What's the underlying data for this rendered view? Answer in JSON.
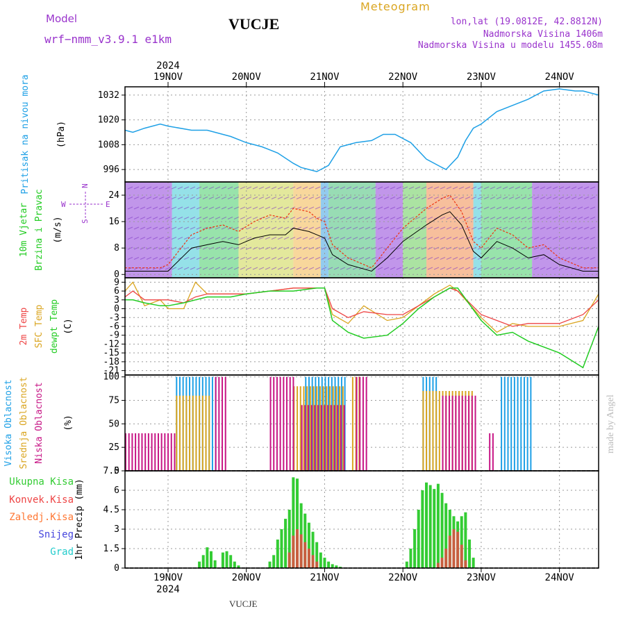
{
  "header": {
    "model_label": "Model",
    "model_name": "wrf−nmm_v3.9.1  e1km",
    "station": "VUCJE",
    "meteogram": "Meteogram",
    "lonlat": "lon,lat (19.0812E, 42.8812N)",
    "altitude": "Nadmorska Visina 1406m",
    "model_altitude": "Nadmorska Visina u modelu 1455.08m",
    "footer_station": "VUCJE",
    "credit": "made by Angel"
  },
  "colors": {
    "pressure": "#1ea0e6",
    "t2m": "#ee4444",
    "tsfc": "#daa520",
    "dewpt": "#22cc22",
    "gust": "#ee3311",
    "high_cloud": "#1ea0e6",
    "mid_cloud": "#daa520",
    "low_cloud": "#c71585",
    "total_precip": "#33cc33",
    "conv_precip": "#ee4444",
    "frz_precip": "#ff7733",
    "snow": "#4444dd",
    "hail": "#22cccc",
    "header_purple": "#9933cc",
    "header_gold": "#daa520"
  },
  "chart_data": {
    "type": "line",
    "time_axis": {
      "top_year": "2024",
      "bottom_year": "2024",
      "tick_labels": [
        "19NOV",
        "20NOV",
        "21NOV",
        "22NOV",
        "23NOV",
        "24NOV"
      ],
      "day_index": [
        0,
        1,
        2,
        3,
        4,
        5
      ],
      "range_days": [
        -0.55,
        5.5
      ]
    },
    "panels": [
      {
        "id": "pressure",
        "ylabels": [
          "Pritisak na nivou mora",
          "(hPa)"
        ],
        "ylim": [
          990,
          1036
        ],
        "yticks": [
          996,
          1008,
          1020,
          1032
        ],
        "series": [
          {
            "key": "pressure",
            "x": [
              -0.55,
              -0.45,
              -0.3,
              -0.1,
              0.0,
              0.3,
              0.5,
              0.8,
              1.0,
              1.2,
              1.4,
              1.6,
              1.7,
              1.8,
              1.9,
              1.95,
              2.0,
              2.05,
              2.2,
              2.4,
              2.6,
              2.75,
              2.9,
              3.1,
              3.3,
              3.5,
              3.55,
              3.7,
              3.8,
              3.9,
              4.0,
              4.2,
              4.4,
              4.6,
              4.8,
              5.0,
              5.2,
              5.3,
              5.5
            ],
            "values": [
              1015,
              1014,
              1016,
              1018,
              1017,
              1015,
              1015,
              1012,
              1009,
              1007,
              1004,
              999,
              997,
              996,
              995,
              996,
              997,
              998,
              1007,
              1009,
              1010,
              1013,
              1013,
              1009,
              1001,
              997,
              996,
              1002,
              1010,
              1016,
              1018,
              1024,
              1027,
              1030,
              1034,
              1035,
              1034,
              1034,
              1032
            ]
          }
        ]
      },
      {
        "id": "wind",
        "ylabels": [
          "10m Vjetar",
          "Brzina i Pravac",
          "(m/s)"
        ],
        "legend": {
          "w": "W",
          "n": "N",
          "s": "S",
          "e": "E"
        },
        "ylim": [
          -1,
          28
        ],
        "yticks": [
          0,
          8,
          16,
          24
        ],
        "series": [
          {
            "key": "wind_speed",
            "x": [
              -0.55,
              -0.1,
              0.0,
              0.3,
              0.5,
              0.7,
              0.9,
              1.1,
              1.3,
              1.5,
              1.6,
              1.8,
              1.9,
              2.0,
              2.1,
              2.3,
              2.6,
              2.8,
              3.0,
              3.3,
              3.5,
              3.6,
              3.75,
              3.9,
              4.0,
              4.2,
              4.4,
              4.6,
              4.8,
              5.0,
              5.3,
              5.5
            ],
            "values": [
              1,
              1,
              1,
              8,
              9,
              10,
              9,
              11,
              12,
              12,
              14,
              13,
              12,
              11,
              6,
              3,
              1,
              5,
              10,
              15,
              18,
              19,
              15,
              7,
              5,
              10,
              8,
              5,
              6,
              3,
              1,
              1
            ]
          },
          {
            "key": "wind_gust",
            "x": [
              -0.55,
              -0.1,
              0.0,
              0.3,
              0.5,
              0.7,
              0.9,
              1.1,
              1.3,
              1.5,
              1.6,
              1.8,
              1.9,
              2.0,
              2.1,
              2.3,
              2.6,
              2.8,
              3.0,
              3.3,
              3.5,
              3.6,
              3.75,
              3.9,
              4.0,
              4.2,
              4.4,
              4.6,
              4.8,
              5.0,
              5.3,
              5.5
            ],
            "values": [
              2,
              2,
              3,
              12,
              14,
              15,
              13,
              16,
              18,
              17,
              20,
              19,
              17,
              16,
              9,
              5,
              2,
              8,
              14,
              20,
              23,
              24,
              19,
              10,
              8,
              14,
              12,
              8,
              9,
              5,
              2,
              2
            ]
          }
        ]
      },
      {
        "id": "temp",
        "ylabels": [
          "2m Temp",
          "SFC Temp",
          "dewpt Temp",
          "(C)"
        ],
        "ylim": [
          -22.5,
          10.5
        ],
        "yticks": [
          9,
          6,
          3,
          0,
          -3,
          -6,
          -9,
          -12,
          -15,
          -18,
          -21
        ],
        "series": [
          {
            "key": "t2m",
            "x": [
              -0.55,
              -0.45,
              -0.3,
              -0.1,
              0.0,
              0.2,
              0.35,
              0.5,
              0.8,
              1.0,
              1.3,
              1.6,
              1.9,
              2.0,
              2.1,
              2.3,
              2.5,
              2.8,
              3.0,
              3.2,
              3.4,
              3.6,
              3.7,
              4.0,
              4.2,
              4.4,
              4.6,
              5.0,
              5.3,
              5.5
            ],
            "values": [
              4,
              6,
              3,
              3,
              3,
              2,
              4,
              5,
              5,
              5,
              6,
              7,
              7,
              7,
              0,
              -3,
              -1,
              -2,
              -2,
              1,
              4,
              7,
              6,
              -2,
              -4,
              -6,
              -5,
              -5,
              -2,
              3
            ]
          },
          {
            "key": "tsfc",
            "x": [
              -0.55,
              -0.45,
              -0.3,
              -0.1,
              0.0,
              0.2,
              0.35,
              0.5,
              0.8,
              1.0,
              1.3,
              1.6,
              1.9,
              2.0,
              2.1,
              2.3,
              2.5,
              2.8,
              3.0,
              3.2,
              3.4,
              3.6,
              3.7,
              4.0,
              4.2,
              4.4,
              4.6,
              5.0,
              5.3,
              5.5
            ],
            "values": [
              6,
              9,
              1,
              3,
              0,
              0,
              9,
              5,
              5,
              5,
              6,
              7,
              7,
              7,
              -2,
              -5,
              1,
              -4,
              -3,
              1,
              5,
              8,
              6,
              -3,
              -8,
              -5,
              -6,
              -6,
              -4,
              5
            ]
          },
          {
            "key": "dewpt",
            "x": [
              -0.55,
              -0.45,
              -0.3,
              -0.1,
              0.0,
              0.2,
              0.35,
              0.5,
              0.8,
              1.0,
              1.3,
              1.6,
              1.9,
              2.0,
              2.1,
              2.3,
              2.5,
              2.8,
              3.0,
              3.2,
              3.4,
              3.6,
              3.7,
              4.0,
              4.2,
              4.4,
              4.6,
              5.0,
              5.3,
              5.5
            ],
            "values": [
              3,
              3,
              2,
              1,
              1,
              2,
              3,
              4,
              4,
              5,
              6,
              6,
              7,
              7,
              -4,
              -8,
              -10,
              -9,
              -5,
              0,
              4,
              7,
              7,
              -4,
              -9,
              -8,
              -11,
              -15,
              -20,
              -6
            ]
          }
        ]
      },
      {
        "id": "clouds",
        "ylabels": [
          "Visoka Oblacnost",
          "Srednja Oblacnost",
          "Niska Oblacnost",
          "(%)"
        ],
        "ylim": [
          0,
          102
        ],
        "yticks": [
          0,
          25,
          50,
          75,
          100
        ],
        "bar_groups": [
          {
            "key": "high_cloud",
            "spans": [
              [
                0.1,
                0.6,
                100
              ],
              [
                1.75,
                2.25,
                100
              ],
              [
                3.25,
                3.45,
                100
              ],
              [
                4.25,
                4.65,
                100
              ]
            ]
          },
          {
            "key": "mid_cloud",
            "spans": [
              [
                0.1,
                0.55,
                80
              ],
              [
                1.6,
                2.25,
                90
              ],
              [
                2.35,
                2.45,
                100
              ],
              [
                3.25,
                3.9,
                85
              ]
            ]
          },
          {
            "key": "low_cloud",
            "spans": [
              [
                -0.55,
                0.1,
                40
              ],
              [
                0.6,
                0.75,
                100
              ],
              [
                1.3,
                1.6,
                100
              ],
              [
                1.7,
                2.25,
                70
              ],
              [
                2.4,
                2.55,
                100
              ],
              [
                3.5,
                3.95,
                80
              ],
              [
                4.1,
                4.15,
                40
              ]
            ]
          }
        ]
      },
      {
        "id": "precip",
        "ylabels": [
          "Ukupna Kisa",
          "Konvek.Kisa",
          "Zaledj.Kisa",
          "Snijeg",
          "Grad",
          "1hr Precip (mm)"
        ],
        "ylim": [
          0,
          7.5
        ],
        "yticks": [
          0,
          1.5,
          3,
          4.5,
          6,
          7.5
        ],
        "series": [
          {
            "key": "total_precip",
            "x": [
              0.4,
              0.45,
              0.5,
              0.55,
              0.6,
              0.7,
              0.75,
              0.8,
              0.85,
              0.9,
              1.3,
              1.35,
              1.4,
              1.45,
              1.5,
              1.55,
              1.6,
              1.65,
              1.7,
              1.75,
              1.8,
              1.85,
              1.9,
              1.95,
              2.0,
              2.05,
              2.1,
              2.15,
              2.2,
              3.05,
              3.1,
              3.15,
              3.2,
              3.25,
              3.3,
              3.35,
              3.4,
              3.45,
              3.5,
              3.55,
              3.6,
              3.65,
              3.7,
              3.75,
              3.8,
              3.85,
              3.9
            ],
            "values": [
              0.5,
              1.0,
              1.6,
              1.3,
              0.6,
              1.2,
              1.3,
              1.0,
              0.5,
              0.2,
              0.5,
              1.0,
              2.2,
              3.0,
              3.8,
              4.5,
              7.0,
              6.9,
              5.0,
              4.2,
              3.5,
              2.8,
              2.0,
              1.2,
              0.8,
              0.5,
              0.3,
              0.2,
              0.1,
              0.5,
              1.5,
              3.0,
              4.5,
              6.0,
              6.6,
              6.4,
              6.1,
              6.5,
              5.8,
              5.0,
              4.5,
              4.0,
              3.6,
              4.0,
              4.3,
              2.2,
              0.8
            ]
          },
          {
            "key": "conv_precip",
            "x": [
              1.55,
              1.6,
              1.65,
              1.7,
              1.75,
              1.8,
              1.85,
              1.9,
              3.45,
              3.5,
              3.55,
              3.6,
              3.65,
              3.7,
              3.75,
              3.8
            ],
            "values": [
              1.2,
              2.5,
              3.0,
              2.6,
              2.0,
              1.5,
              1.0,
              0.5,
              0.4,
              0.8,
              1.5,
              2.5,
              3.0,
              2.8,
              1.8,
              0.6
            ]
          }
        ]
      }
    ]
  }
}
